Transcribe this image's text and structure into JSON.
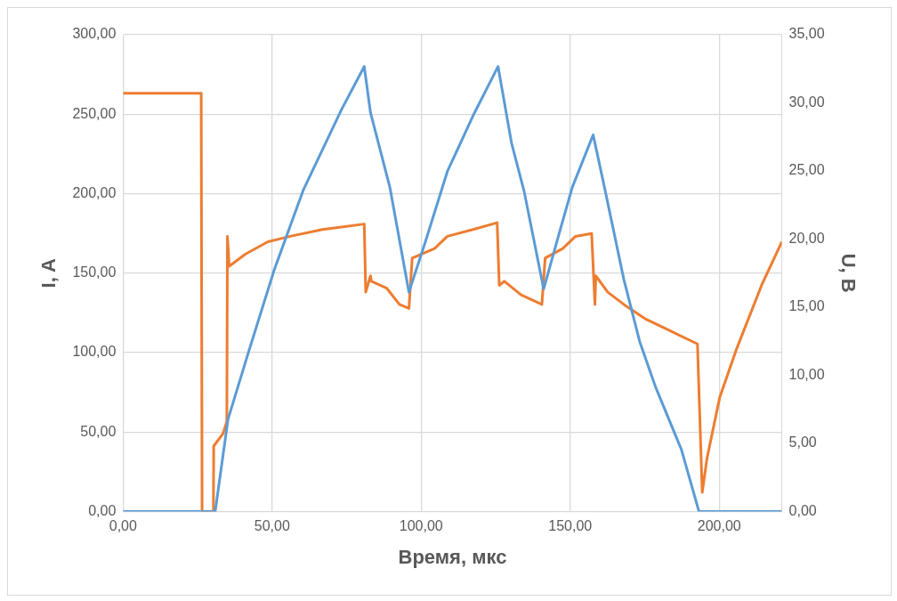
{
  "chart_data": {
    "type": "line",
    "xlabel": "Время, мкс",
    "ylabel": "I, A",
    "y2label": "U, B",
    "xlim": [
      0,
      221
    ],
    "xticks": [
      {
        "value": 0,
        "label": "0,00"
      },
      {
        "value": 50,
        "label": "50,00"
      },
      {
        "value": 100,
        "label": "100,00"
      },
      {
        "value": 150,
        "label": "150,00"
      },
      {
        "value": 200,
        "label": "200,00"
      }
    ],
    "ylim": [
      0,
      300
    ],
    "yticks": [
      {
        "value": 0,
        "label": "0,00"
      },
      {
        "value": 50,
        "label": "50,00"
      },
      {
        "value": 100,
        "label": "100,00"
      },
      {
        "value": 150,
        "label": "150,00"
      },
      {
        "value": 200,
        "label": "200,00"
      },
      {
        "value": 250,
        "label": "250,00"
      },
      {
        "value": 300,
        "label": "300,00"
      }
    ],
    "y2lim": [
      0,
      35
    ],
    "y2ticks": [
      {
        "value": 0,
        "label": "0,00"
      },
      {
        "value": 5,
        "label": "5,00"
      },
      {
        "value": 10,
        "label": "10,00"
      },
      {
        "value": 15,
        "label": "15,00"
      },
      {
        "value": 20,
        "label": "20,00"
      },
      {
        "value": 25,
        "label": "25,00"
      },
      {
        "value": 30,
        "label": "30,00"
      },
      {
        "value": 35,
        "label": "35,00"
      }
    ],
    "grid": true,
    "series": [
      {
        "color": "#5b9bd5",
        "x": [
          0,
          26,
          30.9,
          35.2,
          42.2,
          50.7,
          60.4,
          73.3,
          80.9,
          83,
          89.5,
          95.9,
          101.3,
          108.8,
          117.4,
          125.8,
          130.3,
          134.6,
          141.1,
          145.4,
          150.7,
          157.7,
          161.5,
          168,
          173.3,
          178.7,
          187.3,
          193.2,
          221
        ],
        "values": [
          0,
          0,
          0,
          58,
          101,
          152,
          202,
          253,
          280,
          251,
          204,
          138,
          169,
          214,
          249,
          280,
          232,
          201,
          140,
          169,
          204,
          237,
          204,
          146,
          107,
          78,
          39,
          0,
          0
        ]
      },
      {
        "color": "#ed7d31",
        "axis": "y2",
        "x": [
          0,
          26.2,
          26.5,
          30.3,
          30.4,
          33.5,
          34.8,
          35,
          35.6,
          41.1,
          48.6,
          56.1,
          66.9,
          80.9,
          81.4,
          83,
          83.3,
          88.4,
          92.7,
          95.9,
          97,
          104.5,
          108.8,
          117.4,
          125.5,
          126.2,
          127.9,
          133.5,
          140.5,
          141.6,
          147.5,
          151.8,
          157.2,
          158.3,
          158.6,
          162.6,
          168,
          175.5,
          184.1,
          192.7,
          194.3,
          195.9,
          200.2,
          205.6,
          214.2,
          221
        ],
        "values": [
          30.7,
          30.7,
          0,
          0,
          4.8,
          5.7,
          6.6,
          20.2,
          18,
          18.9,
          19.8,
          20.2,
          20.7,
          21.1,
          16.1,
          17.3,
          16.9,
          16.4,
          15.2,
          14.9,
          18.6,
          19.3,
          20.2,
          20.7,
          21.2,
          16.6,
          16.9,
          15.9,
          15.2,
          18.6,
          19.3,
          20.2,
          20.4,
          15.2,
          17.3,
          16.1,
          15.2,
          14.1,
          13.2,
          12.3,
          1.4,
          3.9,
          8.4,
          11.8,
          16.6,
          19.8
        ]
      }
    ]
  }
}
